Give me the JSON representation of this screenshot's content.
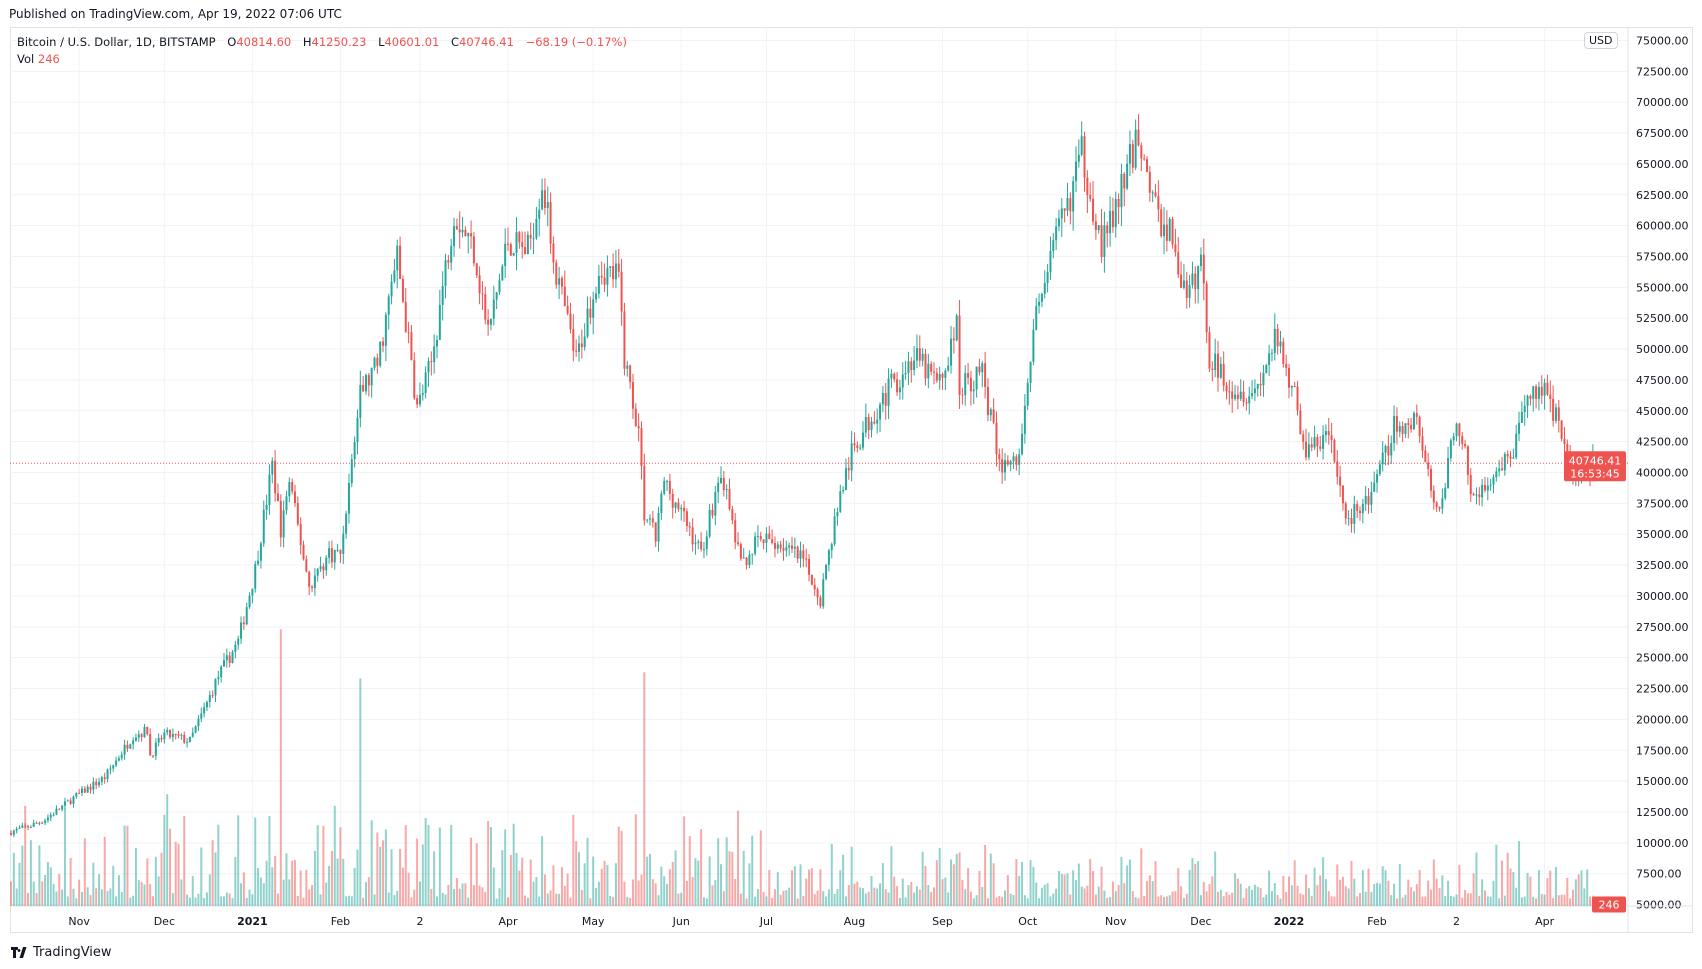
{
  "header": {
    "published": "Published on TradingView.com, Apr 19, 2022 07:06 UTC"
  },
  "legend": {
    "symbol": "Bitcoin / U.S. Dollar, 1D, BITSTAMP",
    "o_label": "O",
    "open": "40814.60",
    "h_label": "H",
    "high": "41250.23",
    "l_label": "L",
    "low": "40601.01",
    "c_label": "C",
    "close": "40746.41",
    "change": "−68.19 (−0.17%)",
    "vol_label": "Vol",
    "vol": "246"
  },
  "currency": "USD",
  "last_price": {
    "price": "40746.41",
    "countdown": "16:53:45",
    "volume": "246"
  },
  "footer": {
    "logo_text": "TradingView"
  },
  "colors": {
    "up": "#26a69a",
    "down": "#ef5350",
    "grid": "#f0f3fa",
    "axis_text": "#131722"
  },
  "chart_data": {
    "type": "candlestick",
    "symbol": "BTCUSD",
    "interval": "1D",
    "ylim": [
      5000,
      75000
    ],
    "y_ticks": [
      75000,
      72500,
      70000,
      67500,
      65000,
      62500,
      60000,
      57500,
      55000,
      52500,
      50000,
      47500,
      45000,
      42500,
      40000,
      37500,
      35000,
      32500,
      30000,
      27500,
      25000,
      22500,
      20000,
      17500,
      15000,
      12500,
      10000,
      7500,
      5000
    ],
    "x_range": [
      "2020-10-08",
      "2022-04-19"
    ],
    "x_ticks": [
      {
        "date": "2020-11-01",
        "label": "Nov"
      },
      {
        "date": "2020-12-01",
        "label": "Dec"
      },
      {
        "date": "2021-01-01",
        "label": "2021"
      },
      {
        "date": "2021-02-01",
        "label": "Feb"
      },
      {
        "date": "2021-03-01",
        "label": "2"
      },
      {
        "date": "2021-04-01",
        "label": "Apr"
      },
      {
        "date": "2021-05-01",
        "label": "May"
      },
      {
        "date": "2021-06-01",
        "label": "Jun"
      },
      {
        "date": "2021-07-01",
        "label": "Jul"
      },
      {
        "date": "2021-08-01",
        "label": "Aug"
      },
      {
        "date": "2021-09-01",
        "label": "Sep"
      },
      {
        "date": "2021-10-01",
        "label": "Oct"
      },
      {
        "date": "2021-11-01",
        "label": "Nov"
      },
      {
        "date": "2021-12-01",
        "label": "Dec"
      },
      {
        "date": "2022-01-01",
        "label": "2022"
      },
      {
        "date": "2022-02-01",
        "label": "Feb"
      },
      {
        "date": "2022-03-01",
        "label": "2"
      },
      {
        "date": "2022-04-01",
        "label": "Apr"
      }
    ],
    "close_points": [
      [
        "2020-10-08",
        10900
      ],
      [
        "2020-10-15",
        11400
      ],
      [
        "2020-10-20",
        11900
      ],
      [
        "2020-10-31",
        13800
      ],
      [
        "2020-11-10",
        15300
      ],
      [
        "2020-11-20",
        18700
      ],
      [
        "2020-11-25",
        19100
      ],
      [
        "2020-11-26",
        17100
      ],
      [
        "2020-12-01",
        18800
      ],
      [
        "2020-12-10",
        18250
      ],
      [
        "2020-12-16",
        21300
      ],
      [
        "2020-12-20",
        23500
      ],
      [
        "2020-12-27",
        26300
      ],
      [
        "2021-01-02",
        32200
      ],
      [
        "2021-01-08",
        40600
      ],
      [
        "2021-01-11",
        35500
      ],
      [
        "2021-01-14",
        39200
      ],
      [
        "2021-01-21",
        30800
      ],
      [
        "2021-01-28",
        33400
      ],
      [
        "2021-02-01",
        33500
      ],
      [
        "2021-02-08",
        46400
      ],
      [
        "2021-02-14",
        48700
      ],
      [
        "2021-02-21",
        57500
      ],
      [
        "2021-02-28",
        45200
      ],
      [
        "2021-03-05",
        48800
      ],
      [
        "2021-03-13",
        61200
      ],
      [
        "2021-03-20",
        58100
      ],
      [
        "2021-03-25",
        51300
      ],
      [
        "2021-04-01",
        58800
      ],
      [
        "2021-04-08",
        58000
      ],
      [
        "2021-04-13",
        63600
      ],
      [
        "2021-04-18",
        56200
      ],
      [
        "2021-04-25",
        49000
      ],
      [
        "2021-05-03",
        56600
      ],
      [
        "2021-05-10",
        55800
      ],
      [
        "2021-05-12",
        49300
      ],
      [
        "2021-05-17",
        43500
      ],
      [
        "2021-05-19",
        36700
      ],
      [
        "2021-05-23",
        34700
      ],
      [
        "2021-05-26",
        39300
      ],
      [
        "2021-06-01",
        36700
      ],
      [
        "2021-06-08",
        33500
      ],
      [
        "2021-06-15",
        40200
      ],
      [
        "2021-06-22",
        32500
      ],
      [
        "2021-06-28",
        34500
      ],
      [
        "2021-07-06",
        34200
      ],
      [
        "2021-07-14",
        32800
      ],
      [
        "2021-07-20",
        29800
      ],
      [
        "2021-07-26",
        37300
      ],
      [
        "2021-07-31",
        41500
      ],
      [
        "2021-08-07",
        44600
      ],
      [
        "2021-08-14",
        47000
      ],
      [
        "2021-08-22",
        49300
      ],
      [
        "2021-08-31",
        47100
      ],
      [
        "2021-09-06",
        51800
      ],
      [
        "2021-09-07",
        46900
      ],
      [
        "2021-09-15",
        48100
      ],
      [
        "2021-09-21",
        40600
      ],
      [
        "2021-09-28",
        41000
      ],
      [
        "2021-10-01",
        48100
      ],
      [
        "2021-10-06",
        55300
      ],
      [
        "2021-10-15",
        61600
      ],
      [
        "2021-10-20",
        66000
      ],
      [
        "2021-10-27",
        58400
      ],
      [
        "2021-11-01",
        61300
      ],
      [
        "2021-11-09",
        67500
      ],
      [
        "2021-11-16",
        60300
      ],
      [
        "2021-11-20",
        59700
      ],
      [
        "2021-11-26",
        53700
      ],
      [
        "2021-12-01",
        57200
      ],
      [
        "2021-12-04",
        49300
      ],
      [
        "2021-12-13",
        46700
      ],
      [
        "2021-12-20",
        46600
      ],
      [
        "2021-12-27",
        50600
      ],
      [
        "2022-01-02",
        47300
      ],
      [
        "2022-01-07",
        41600
      ],
      [
        "2022-01-15",
        43100
      ],
      [
        "2022-01-21",
        36400
      ],
      [
        "2022-01-24",
        36700
      ],
      [
        "2022-01-31",
        38500
      ],
      [
        "2022-02-07",
        43800
      ],
      [
        "2022-02-10",
        43500
      ],
      [
        "2022-02-15",
        44500
      ],
      [
        "2022-02-21",
        37000
      ],
      [
        "2022-02-24",
        38300
      ],
      [
        "2022-03-01",
        44400
      ],
      [
        "2022-03-07",
        38000
      ],
      [
        "2022-03-15",
        39300
      ],
      [
        "2022-03-22",
        42400
      ],
      [
        "2022-03-28",
        47100
      ],
      [
        "2022-04-02",
        46300
      ],
      [
        "2022-04-07",
        43500
      ],
      [
        "2022-04-11",
        39500
      ],
      [
        "2022-04-19",
        40746.41
      ]
    ],
    "last_candle": {
      "date": "2022-04-19",
      "open": 40814.6,
      "high": 41250.23,
      "low": 40601.01,
      "close": 40746.41,
      "volume": 246
    },
    "volume_spikes": [
      [
        "2021-01-11",
        22500
      ],
      [
        "2021-05-19",
        19000
      ],
      [
        "2021-02-08",
        18500
      ]
    ]
  }
}
